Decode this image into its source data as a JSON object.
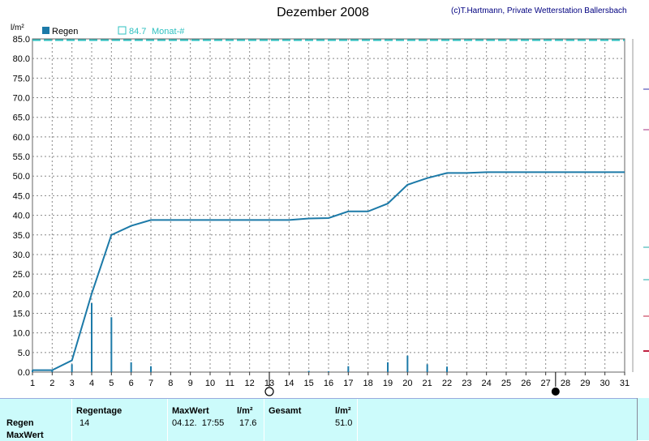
{
  "title": "Dezember 2008",
  "credit": "(c)T.Hartmann, Private Wetterstation Ballersbach",
  "colors": {
    "line": "#1c7aa8",
    "bars": "#1c7aa8",
    "monthly": "#2ec0c0",
    "footer_bg": "#ccfbfb"
  },
  "chart_data": {
    "type": "bar",
    "ylabel": "l/m²",
    "ylim": [
      0,
      85
    ],
    "yticks": [
      "0.0",
      "5.0",
      "10.0",
      "15.0",
      "20.0",
      "25.0",
      "30.0",
      "35.0",
      "40.0",
      "45.0",
      "50.0",
      "55.0",
      "60.0",
      "65.0",
      "70.0",
      "75.0",
      "80.0",
      "85.0"
    ],
    "xlim": [
      1,
      31
    ],
    "xticks": [
      "1",
      "2",
      "3",
      "4",
      "5",
      "6",
      "7",
      "8",
      "9",
      "10",
      "11",
      "12",
      "13",
      "14",
      "15",
      "16",
      "17",
      "18",
      "19",
      "20",
      "21",
      "22",
      "23",
      "24",
      "25",
      "26",
      "27",
      "28",
      "29",
      "30",
      "31"
    ],
    "grid": true,
    "legend_position": "top-left",
    "legend": {
      "series_name": "Regen",
      "monthly_value": "84.7",
      "monthly_label": "Monat-#"
    },
    "series": [
      {
        "name": "Regen",
        "type": "bar",
        "points": [
          [
            1,
            0.5
          ],
          [
            2,
            0.5
          ],
          [
            3,
            2.0
          ],
          [
            4,
            17.6
          ],
          [
            5,
            14.0
          ],
          [
            6,
            2.5
          ],
          [
            7,
            1.5
          ],
          [
            15,
            0.3
          ],
          [
            16,
            0.2
          ],
          [
            17,
            1.5
          ],
          [
            19,
            2.5
          ],
          [
            20,
            4.2
          ],
          [
            21,
            2.0
          ],
          [
            22,
            1.4
          ]
        ]
      },
      {
        "name": "Regen",
        "type": "line",
        "description": "cumulative",
        "points": [
          [
            1,
            0.5
          ],
          [
            2,
            0.5
          ],
          [
            3,
            3.0
          ],
          [
            4,
            20.0
          ],
          [
            5,
            35.0
          ],
          [
            6,
            37.3
          ],
          [
            7,
            38.8
          ],
          [
            14,
            38.8
          ],
          [
            15,
            39.2
          ],
          [
            16,
            39.3
          ],
          [
            17,
            41.0
          ],
          [
            18,
            41.0
          ],
          [
            19,
            43.0
          ],
          [
            20,
            47.8
          ],
          [
            21,
            49.5
          ],
          [
            22,
            50.8
          ],
          [
            23,
            50.8
          ],
          [
            24,
            51.0
          ],
          [
            31,
            51.0
          ]
        ]
      },
      {
        "name": "Monat-#",
        "type": "line",
        "style": "dashed",
        "value": 84.7
      }
    ],
    "markers": [
      {
        "x": 13,
        "type": "full-moon"
      },
      {
        "x": 27.5,
        "type": "new-moon"
      }
    ]
  },
  "footer": {
    "row_labels": [
      "Regen",
      "MaxWert"
    ],
    "regentage_label": "Regentage",
    "regentage_value": "14",
    "maxwert_label": "MaxWert",
    "maxwert_unit": "l/m²",
    "maxwert_date": "04.12.  17:55",
    "maxwert_value": "17.6",
    "gesamt_label": "Gesamt",
    "gesamt_unit": "l/m²",
    "gesamt_value": "51.0"
  }
}
